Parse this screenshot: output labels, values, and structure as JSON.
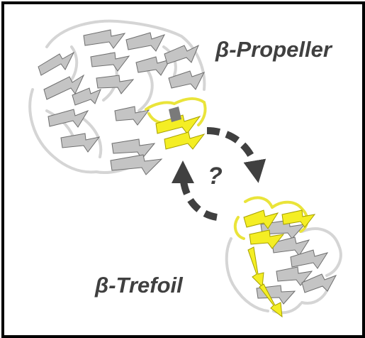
{
  "labels": {
    "propeller": "β-Propeller",
    "trefoil": "β-Trefoil",
    "question": "?"
  },
  "colors": {
    "frame": "#000000",
    "background": "#ffffff",
    "text": "#404040",
    "arrow": "#404040",
    "ribbon_gray": "#c8c8c8",
    "ribbon_gray_dark": "#7a7a7a",
    "ribbon_highlight": "#f4ee24",
    "ribbon_highlight_dark": "#b3ad00",
    "loop": "#d9d9d9"
  }
}
